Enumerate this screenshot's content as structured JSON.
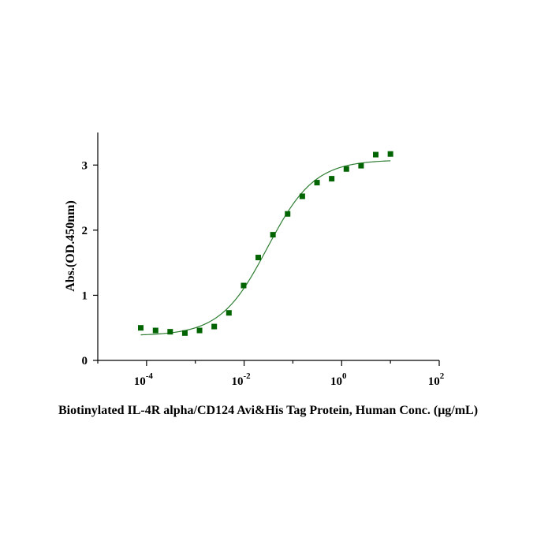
{
  "chart_data": {
    "type": "scatter",
    "xlabel": "Biotinylated IL-4R alpha/CD124 Avi&His Tag Protein, Human Conc. (μg/mL)",
    "ylabel": "Abs.(OD.450nm)",
    "x_scale": "log10",
    "xlim": [
      1e-05,
      100
    ],
    "ylim": [
      0,
      3.5
    ],
    "x_ticks": [
      {
        "value": 0.0001,
        "base": "10",
        "exp": "-4"
      },
      {
        "value": 0.01,
        "base": "10",
        "exp": "-2"
      },
      {
        "value": 1,
        "base": "10",
        "exp": "0"
      },
      {
        "value": 100,
        "base": "10",
        "exp": "2"
      }
    ],
    "y_ticks": [
      {
        "value": 0,
        "label": "0"
      },
      {
        "value": 1,
        "label": "1"
      },
      {
        "value": 2,
        "label": "2"
      },
      {
        "value": 3,
        "label": "3"
      }
    ],
    "grid": false,
    "legend": "none",
    "colors": {
      "marker": "#006400",
      "curve": "#2e7d32",
      "axis": "#000000"
    },
    "series": [
      {
        "points": [
          {
            "x": 7.6e-05,
            "y": 0.5
          },
          {
            "x": 0.000153,
            "y": 0.46
          },
          {
            "x": 0.000305,
            "y": 0.44
          },
          {
            "x": 0.00061,
            "y": 0.42
          },
          {
            "x": 0.00122,
            "y": 0.46
          },
          {
            "x": 0.00244,
            "y": 0.52
          },
          {
            "x": 0.00488,
            "y": 0.73
          },
          {
            "x": 0.00977,
            "y": 1.15
          },
          {
            "x": 0.0195,
            "y": 1.58
          },
          {
            "x": 0.039,
            "y": 1.93
          },
          {
            "x": 0.078,
            "y": 2.25
          },
          {
            "x": 0.156,
            "y": 2.52
          },
          {
            "x": 0.3125,
            "y": 2.73
          },
          {
            "x": 0.625,
            "y": 2.79
          },
          {
            "x": 1.25,
            "y": 2.94
          },
          {
            "x": 2.5,
            "y": 2.99
          },
          {
            "x": 5,
            "y": 3.16
          },
          {
            "x": 10,
            "y": 3.17
          }
        ],
        "fit": {
          "model": "4PL",
          "bottom": 0.38,
          "top": 3.08,
          "ec50": 0.03,
          "hill": 0.9,
          "x_range": [
            7.6e-05,
            10
          ]
        }
      }
    ]
  }
}
